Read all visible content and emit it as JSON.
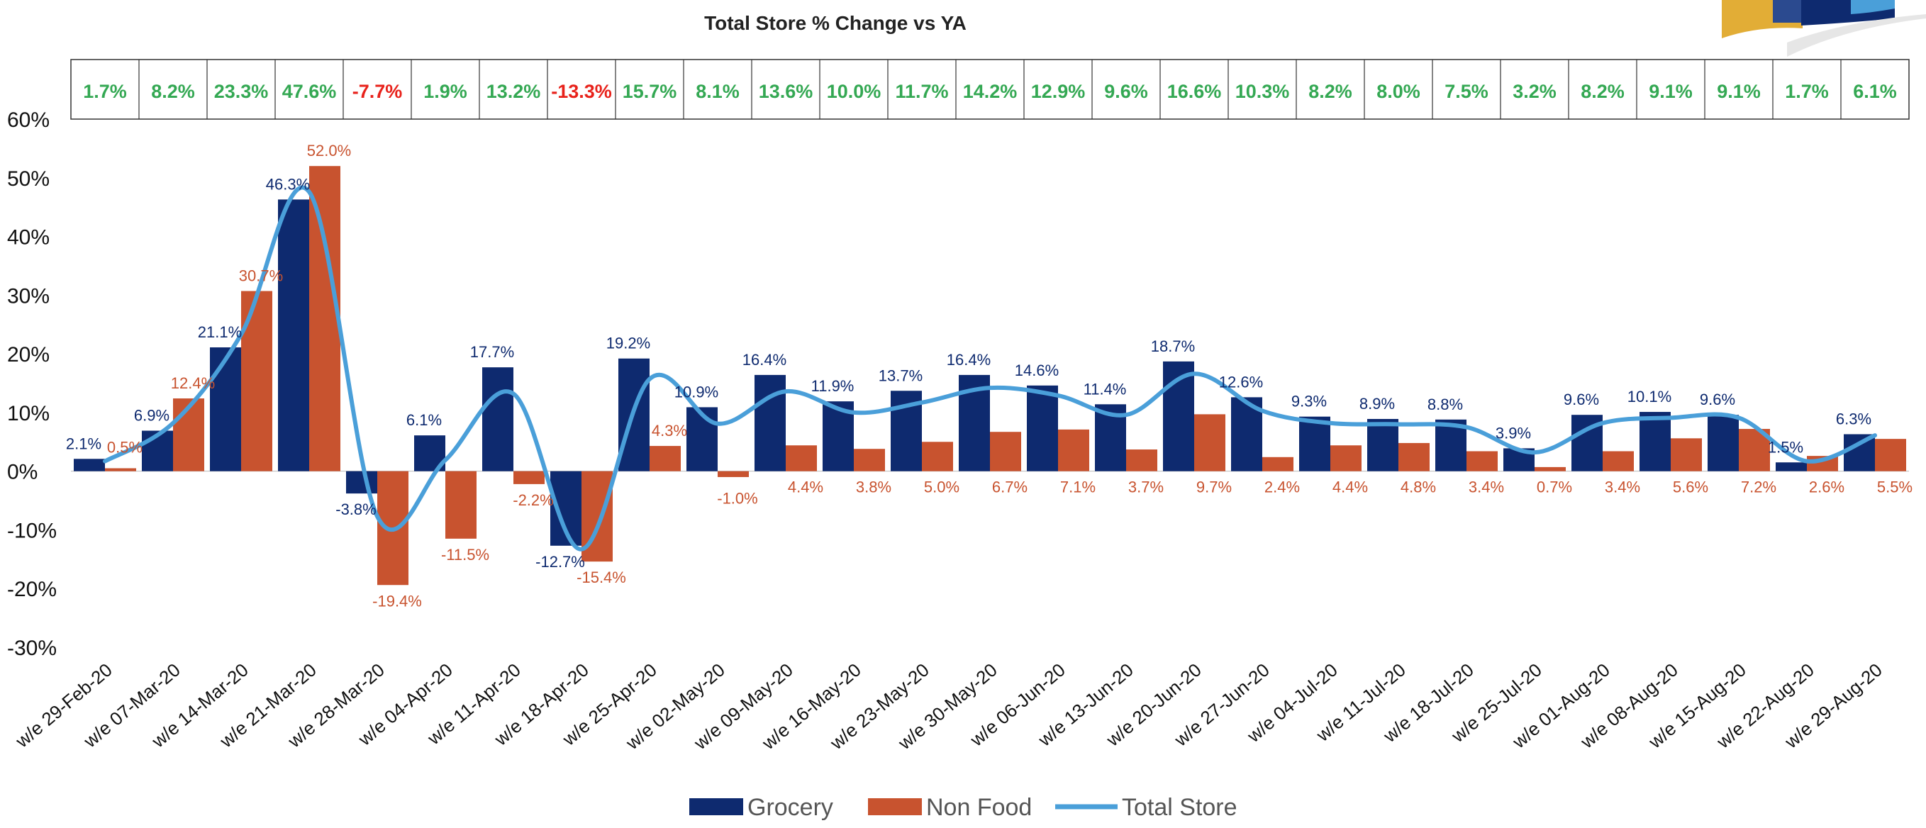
{
  "chart_data": {
    "type": "bar",
    "title": "Total Store % Change vs YA",
    "xlabel": "",
    "ylabel": "",
    "ylim": [
      -30,
      60
    ],
    "yticks": [
      "60%",
      "50%",
      "40%",
      "30%",
      "20%",
      "10%",
      "0%",
      "-10%",
      "-20%",
      "-30%"
    ],
    "categories": [
      "w/e 29-Feb-20",
      "w/e 07-Mar-20",
      "w/e 14-Mar-20",
      "w/e 21-Mar-20",
      "w/e 28-Mar-20",
      "w/e 04-Apr-20",
      "w/e 11-Apr-20",
      "w/e 18-Apr-20",
      "w/e 25-Apr-20",
      "w/e 02-May-20",
      "w/e 09-May-20",
      "w/e 16-May-20",
      "w/e 23-May-20",
      "w/e 30-May-20",
      "w/e 06-Jun-20",
      "w/e 13-Jun-20",
      "w/e 20-Jun-20",
      "w/e 27-Jun-20",
      "w/e 04-Jul-20",
      "w/e 11-Jul-20",
      "w/e 18-Jul-20",
      "w/e 25-Jul-20",
      "w/e 01-Aug-20",
      "w/e 08-Aug-20",
      "w/e 15-Aug-20",
      "w/e 22-Aug-20",
      "w/e 29-Aug-20"
    ],
    "series": [
      {
        "name": "Grocery",
        "type": "bar",
        "color": "#0e2a6f",
        "values": [
          2.1,
          6.9,
          21.1,
          46.3,
          -3.8,
          6.1,
          17.7,
          -12.7,
          19.2,
          10.9,
          16.4,
          11.9,
          13.7,
          16.4,
          14.6,
          11.4,
          18.7,
          12.6,
          9.3,
          8.9,
          8.8,
          3.9,
          9.6,
          10.1,
          9.6,
          1.5,
          6.3
        ],
        "labels": [
          "2.1%",
          "6.9%",
          "21.1%",
          "46.3%",
          "-3.8%",
          "6.1%",
          "17.7%",
          "-12.7%",
          "19.2%",
          "10.9%",
          "16.4%",
          "11.9%",
          "13.7%",
          "16.4%",
          "14.6%",
          "11.4%",
          "18.7%",
          "12.6%",
          "9.3%",
          "8.9%",
          "8.8%",
          "3.9%",
          "9.6%",
          "10.1%",
          "9.6%",
          "1.5%",
          "6.3%"
        ]
      },
      {
        "name": "Non Food",
        "type": "bar",
        "color": "#c8532f",
        "values": [
          0.5,
          12.4,
          30.7,
          52.0,
          -19.4,
          -11.5,
          -2.2,
          -15.4,
          4.3,
          -1.0,
          4.4,
          3.8,
          5.0,
          6.7,
          7.1,
          3.7,
          9.7,
          2.4,
          4.4,
          4.8,
          3.4,
          0.7,
          3.4,
          5.6,
          7.2,
          2.6,
          5.5
        ],
        "labels": [
          "0.5%",
          "12.4%",
          "30.7%",
          "52.0%",
          "-19.4%",
          "-11.5%",
          "-2.2%",
          "-15.4%",
          "4.3%",
          "-1.0%",
          "4.4%",
          "3.8%",
          "5.0%",
          "6.7%",
          "7.1%",
          "3.7%",
          "9.7%",
          "2.4%",
          "4.4%",
          "4.8%",
          "3.4%",
          "0.7%",
          "3.4%",
          "5.6%",
          "7.2%",
          "2.6%",
          "5.5%"
        ]
      },
      {
        "name": "Total Store",
        "type": "line",
        "color": "#4a9fd9",
        "values": [
          1.7,
          8.2,
          23.3,
          47.6,
          -7.7,
          1.9,
          13.2,
          -13.3,
          15.7,
          8.1,
          13.6,
          10.0,
          11.7,
          14.2,
          12.9,
          9.6,
          16.6,
          10.3,
          8.2,
          8.0,
          7.5,
          3.2,
          8.2,
          9.1,
          9.1,
          1.7,
          6.1
        ],
        "labels": [
          "1.7%",
          "8.2%",
          "23.3%",
          "47.6%",
          "-7.7%",
          "1.9%",
          "13.2%",
          "-13.3%",
          "15.7%",
          "8.1%",
          "13.6%",
          "10.0%",
          "11.7%",
          "14.2%",
          "12.9%",
          "9.6%",
          "16.6%",
          "10.3%",
          "8.2%",
          "8.0%",
          "7.5%",
          "3.2%",
          "8.2%",
          "9.1%",
          "9.1%",
          "1.7%",
          "6.1%"
        ]
      }
    ],
    "legend": {
      "position": "bottom",
      "entries": [
        "Grocery",
        "Non Food",
        "Total Store"
      ]
    },
    "colors": {
      "positive_total": "#34a853",
      "negative_total": "#e8221b",
      "grocery_label": "#0e2a6f",
      "nonfood_label": "#c8532f"
    },
    "grid": false
  }
}
